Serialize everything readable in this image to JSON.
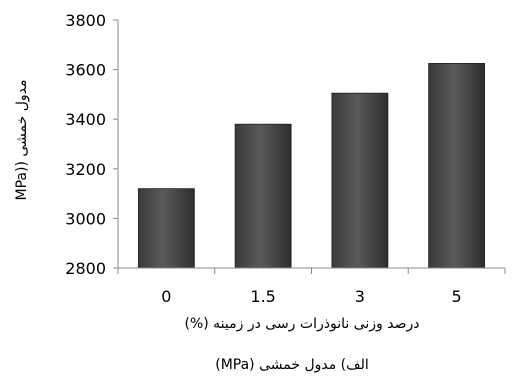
{
  "chart_data": {
    "type": "bar",
    "categories": [
      "0",
      "1.5",
      "3",
      "5"
    ],
    "values": [
      3120,
      3380,
      3505,
      3625
    ],
    "xlabel": "درصد وزنی نانوذرات رسی در زمینه (%)",
    "ylabel": "مدول خمشی ((MPa",
    "ylim": [
      2800,
      3800
    ],
    "yticks": [
      "2800",
      "3000",
      "3200",
      "3400",
      "3600",
      "3800"
    ],
    "grid": false,
    "legend": "none",
    "bar_color": "#5a5a5a"
  },
  "caption": "الف) مدول خمشی (MPa)"
}
